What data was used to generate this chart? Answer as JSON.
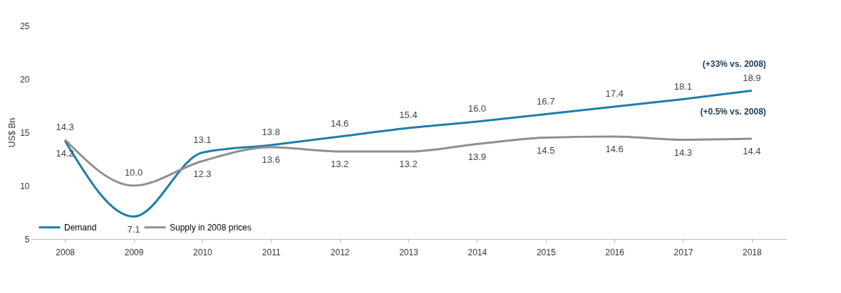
{
  "chart_data": {
    "type": "line",
    "ylabel": "US$ Bn",
    "categories": [
      "2008",
      "2009",
      "2010",
      "2011",
      "2012",
      "2013",
      "2014",
      "2015",
      "2016",
      "2017",
      "2018"
    ],
    "series": [
      {
        "name": "Demand",
        "color": "#1f7ea8",
        "values": [
          14.2,
          7.1,
          13.1,
          13.8,
          14.6,
          15.4,
          16.0,
          16.7,
          17.4,
          18.1,
          18.9
        ],
        "value_labels": [
          "14.2",
          "7.1",
          "13.1",
          "13.8",
          "14.6",
          "15.4",
          "16.0",
          "16.7",
          "17.4",
          "18.1",
          "18.9"
        ]
      },
      {
        "name": "Supply in 2008 prices",
        "color": "#8f8f8f",
        "values": [
          14.3,
          10.0,
          12.3,
          13.6,
          13.2,
          13.2,
          13.9,
          14.5,
          14.6,
          14.3,
          14.4
        ],
        "value_labels": [
          "14.3",
          "10.0",
          "12.3",
          "13.6",
          "13.2",
          "13.2",
          "13.9",
          "14.5",
          "14.6",
          "14.3",
          "14.4"
        ]
      }
    ],
    "annotations": [
      {
        "text": "(+33% vs. 2008)",
        "x": "2018",
        "y": 18.9
      },
      {
        "text": "(+0.5% vs. 2008)",
        "x": "2018",
        "y": 14.4
      }
    ],
    "ylim": [
      5,
      25
    ],
    "yticks": [
      5,
      10,
      15,
      20,
      25
    ],
    "grid": false,
    "legend": "bottom left",
    "marker": "none",
    "line_style": "solid"
  }
}
